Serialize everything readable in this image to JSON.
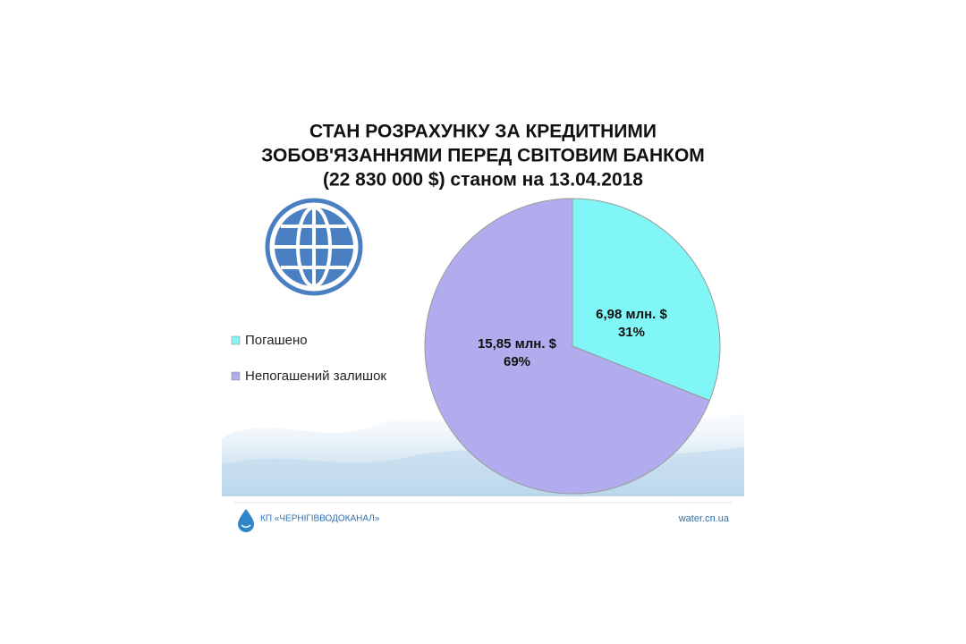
{
  "chart_data": {
    "type": "pie",
    "title": [
      "СТАН РОЗРАХУНКУ ЗА КРЕДИТНИМИ",
      "ЗОБОВ'ЯЗАННЯМИ ПЕРЕД СВІТОВИМ БАНКОМ",
      "(22 830 000 $) станом на 13.04.2018"
    ],
    "categories": [
      "Погашено",
      "Непогашений залишок"
    ],
    "values": [
      31,
      69
    ],
    "value_labels": [
      "31%",
      "69%"
    ],
    "amount_labels": [
      "6,98 млн. $",
      "15,85 млн. $"
    ],
    "colors": [
      "#80f6f6",
      "#b1aced"
    ],
    "legend": "left"
  },
  "footer": {
    "organization": "КП «ЧЕРНІГІВВОДОКАНАЛ»",
    "website": "water.cn.ua"
  }
}
